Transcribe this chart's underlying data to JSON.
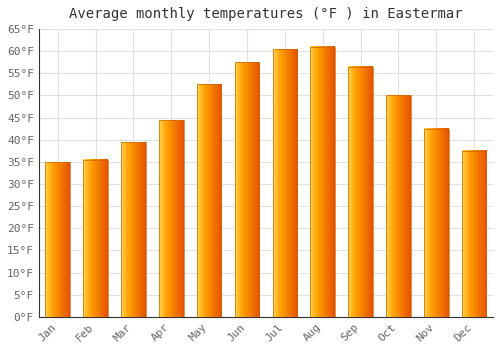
{
  "title": "Average monthly temperatures (°F ) in Eastermar",
  "months": [
    "Jan",
    "Feb",
    "Mar",
    "Apr",
    "May",
    "Jun",
    "Jul",
    "Aug",
    "Sep",
    "Oct",
    "Nov",
    "Dec"
  ],
  "values": [
    35,
    35.5,
    39.5,
    44.5,
    52.5,
    57.5,
    60.5,
    61,
    56.5,
    50,
    42.5,
    37.5
  ],
  "bar_color_center": "#FFB300",
  "bar_color_edge": "#E65100",
  "ylim": [
    0,
    65
  ],
  "yticks": [
    0,
    5,
    10,
    15,
    20,
    25,
    30,
    35,
    40,
    45,
    50,
    55,
    60,
    65
  ],
  "ytick_labels": [
    "0°F",
    "5°F",
    "10°F",
    "15°F",
    "20°F",
    "25°F",
    "30°F",
    "35°F",
    "40°F",
    "45°F",
    "50°F",
    "55°F",
    "60°F",
    "65°F"
  ],
  "background_color": "#ffffff",
  "grid_color": "#e0e0e0",
  "title_fontsize": 10,
  "tick_fontsize": 8,
  "font_family": "monospace",
  "bar_width": 0.65
}
